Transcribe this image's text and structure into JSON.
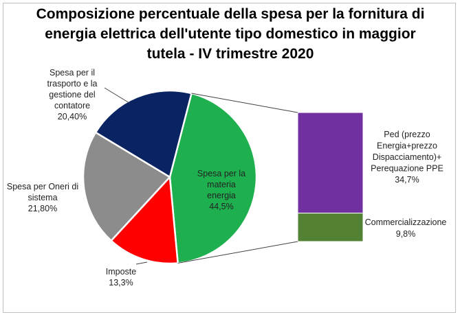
{
  "chart_data": [
    {
      "type": "pie",
      "title": "Composizione percentuale della spesa per la fornitura di energia elettrica dell'utente tipo domestico in maggior tutela - IV trimestre 2020",
      "slices": [
        {
          "label": "Spesa per la materia energia",
          "value": 44.5,
          "value_label": "44,5%",
          "color": "#1eb04f"
        },
        {
          "label": "Imposte",
          "value": 13.3,
          "value_label": "13,3%",
          "color": "#ff0000"
        },
        {
          "label": "Spesa per Oneri di sistema",
          "value": 21.8,
          "value_label": "21,80%",
          "color": "#8c8c8c"
        },
        {
          "label": "Spesa per il trasporto e la gestione del contatore",
          "value": 20.4,
          "value_label": "20,40%",
          "color": "#0a2463"
        }
      ]
    },
    {
      "type": "bar",
      "stacked": true,
      "breakdown_of": "Spesa per la materia energia",
      "segments": [
        {
          "label": "Ped (prezzo Energia+prezzo Dispacciamento)+ Perequazione PPE",
          "value": 34.7,
          "value_label": "34,7%",
          "color": "#7030a0"
        },
        {
          "label": "Commercializzazione",
          "value": 9.8,
          "value_label": "9,8%",
          "color": "#548235"
        }
      ]
    }
  ]
}
